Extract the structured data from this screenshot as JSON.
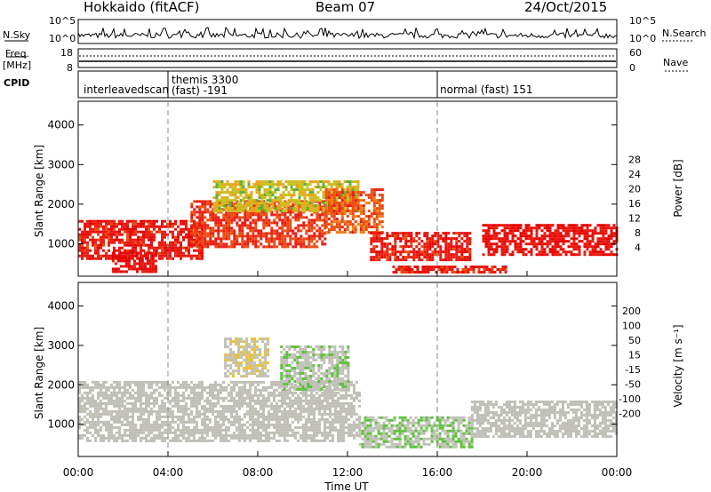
{
  "header": {
    "station": "Hokkaido (fitACF)",
    "beam": "Beam 07",
    "date": "24/Oct/2015"
  },
  "strip": {
    "nsky_label": "N.Sky",
    "nsky_ticks": [
      "10^5",
      "10^0"
    ],
    "nsearch_label": "N.Search",
    "nsearch_ticks": [
      "10^5",
      "10^0"
    ],
    "freq_label": "Freq.",
    "freq_unit": "[MHz]",
    "freq_ticks": [
      "18",
      "8"
    ],
    "nave_label": "Nave",
    "nave_ticks": [
      "60",
      "0"
    ],
    "cpid_label": "CPID"
  },
  "modes": [
    {
      "name": "interleavedscan",
      "start": 0,
      "end": 4
    },
    {
      "name": "themis 3300",
      "detail": "(fast) -191",
      "start": 4,
      "end": 16
    },
    {
      "name": "normal (fast) 151",
      "start": 16,
      "end": 24
    }
  ],
  "colors": {
    "power": [
      "#1010e0",
      "#1d4f9e",
      "#2e8c62",
      "#55b23a",
      "#c8c020",
      "#f0a21c",
      "#f27a10",
      "#ec4a10",
      "#e81a10",
      "#e80000"
    ],
    "velocity": [
      "#e80000",
      "#f04a10",
      "#f0a020",
      "#e8c030",
      "#c0c0b8",
      "#c0c0b8",
      "#5cc23a",
      "#2e8c62",
      "#1d4f9e",
      "#1010e0"
    ]
  },
  "chart_data": [
    {
      "type": "heatmap",
      "name": "power",
      "xlabel": "Time UT",
      "ylabel": "Slant Range [km]",
      "x_ticks": [
        "00:00",
        "04:00",
        "08:00",
        "12:00",
        "16:00",
        "20:00",
        "00:00"
      ],
      "xlim": [
        0,
        24
      ],
      "ylim": [
        180,
        4600
      ],
      "y_ticks": [
        1000,
        2000,
        3000,
        4000
      ],
      "colorbar_label": "Power [dB]",
      "colorbar_ticks": [
        "4",
        "8",
        "12",
        "16",
        "20",
        "24",
        "28"
      ],
      "clim": [
        0,
        30
      ],
      "mode_boundaries": [
        4,
        16
      ],
      "echo_regions": [
        {
          "t0": 0.0,
          "t1": 5.5,
          "r_low": 600,
          "r_high": 1600,
          "value": 26
        },
        {
          "t0": 1.5,
          "t1": 3.5,
          "r_low": 300,
          "r_high": 800,
          "value": 28
        },
        {
          "t0": 5.0,
          "t1": 11.0,
          "r_low": 900,
          "r_high": 2100,
          "value": 24
        },
        {
          "t0": 6.0,
          "t1": 12.5,
          "r_low": 1800,
          "r_high": 2600,
          "value": 14
        },
        {
          "t0": 11.0,
          "t1": 13.5,
          "r_low": 1300,
          "r_high": 2400,
          "value": 22
        },
        {
          "t0": 13.0,
          "t1": 17.5,
          "r_low": 600,
          "r_high": 1300,
          "value": 26
        },
        {
          "t0": 18.0,
          "t1": 24.0,
          "r_low": 700,
          "r_high": 1500,
          "value": 27
        },
        {
          "t0": 14.0,
          "t1": 19.0,
          "r_low": 250,
          "r_high": 450,
          "value": 25
        }
      ]
    },
    {
      "type": "heatmap",
      "name": "velocity",
      "xlabel": "Time UT",
      "ylabel": "Slant Range [km]",
      "x_ticks": [
        "00:00",
        "04:00",
        "08:00",
        "12:00",
        "16:00",
        "20:00",
        "00:00"
      ],
      "xlim": [
        0,
        24
      ],
      "ylim": [
        180,
        4600
      ],
      "y_ticks": [
        1000,
        2000,
        3000,
        4000
      ],
      "colorbar_label": "Velocity [m s⁻¹]",
      "colorbar_ticks": [
        "200",
        "100",
        "50",
        "15",
        "-15",
        "-50",
        "-100",
        "-200"
      ],
      "clim": [
        -250,
        250
      ],
      "mode_boundaries": [
        4,
        16
      ],
      "echo_regions": [
        {
          "t0": 0.0,
          "t1": 12.5,
          "r_low": 600,
          "r_high": 2100,
          "value": 0
        },
        {
          "t0": 9.0,
          "t1": 12.0,
          "r_low": 1900,
          "r_high": 3000,
          "value": 30
        },
        {
          "t0": 12.5,
          "t1": 17.5,
          "r_low": 400,
          "r_high": 1200,
          "value": 40
        },
        {
          "t0": 17.5,
          "t1": 24.0,
          "r_low": 700,
          "r_high": 1600,
          "value": 0
        },
        {
          "t0": 6.5,
          "t1": 8.5,
          "r_low": 2200,
          "r_high": 3200,
          "value": -40
        }
      ]
    }
  ]
}
